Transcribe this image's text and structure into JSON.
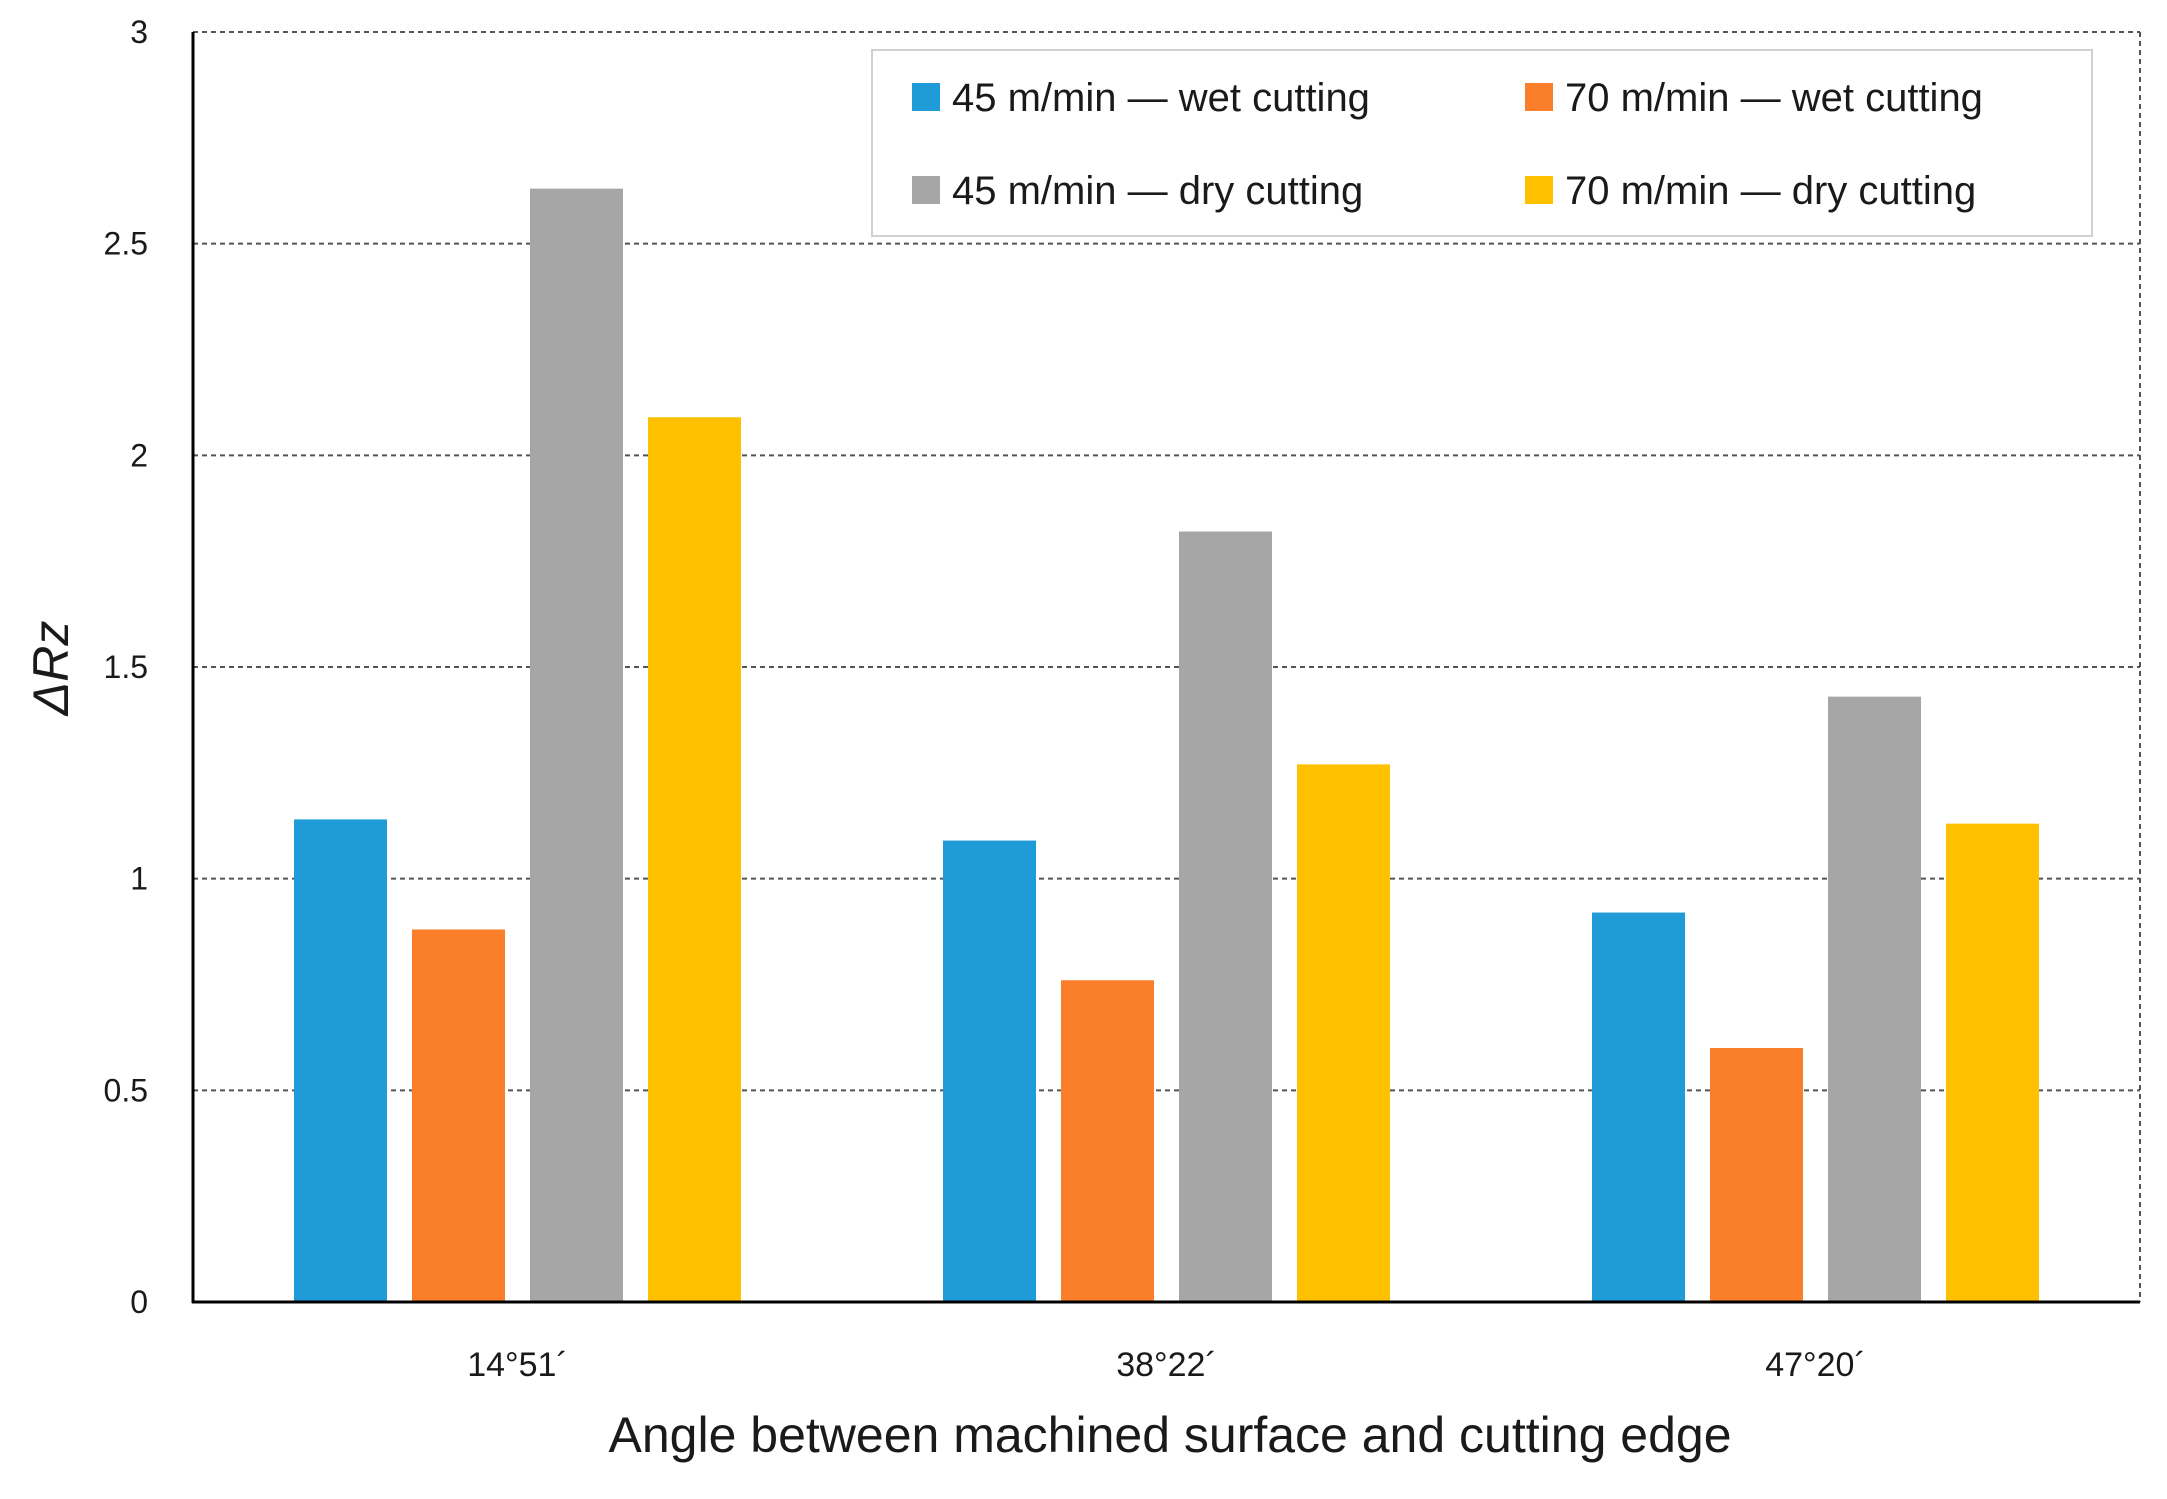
{
  "chart_data": {
    "type": "bar",
    "title": "",
    "xlabel": "Angle between machined surface and cutting edge",
    "ylabel": "ΔRz",
    "ylim": [
      0,
      3
    ],
    "yticks": [
      0,
      0.5,
      1,
      1.5,
      2,
      2.5,
      3
    ],
    "ytick_labels": [
      "0",
      "0.5",
      "1",
      "1.5",
      "2",
      "2.5",
      "3"
    ],
    "grid": true,
    "legend_position": "top-right",
    "categories": [
      "14°51´",
      "38°22´",
      "47°20´"
    ],
    "series": [
      {
        "name": "45 m/min — wet cutting",
        "color": "#1f9bd7",
        "values": [
          1.14,
          1.09,
          0.92
        ]
      },
      {
        "name": "70 m/min — wet cutting",
        "color": "#fb7f2a",
        "values": [
          0.88,
          0.76,
          0.6
        ]
      },
      {
        "name": "45 m/min — dry cutting",
        "color": "#a6a6a6",
        "values": [
          2.63,
          1.82,
          1.43
        ]
      },
      {
        "name": "70 m/min — dry cutting",
        "color": "#ffc000",
        "values": [
          2.09,
          1.27,
          1.13
        ]
      }
    ]
  }
}
